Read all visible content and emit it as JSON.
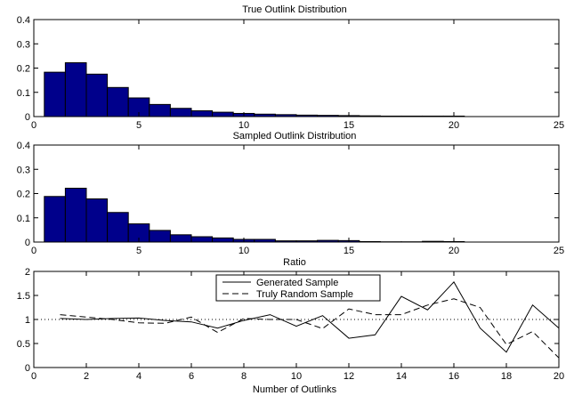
{
  "chart_data": [
    {
      "type": "bar",
      "title": "True Outlink Distribution",
      "xlim": [
        0,
        25
      ],
      "ylim": [
        0,
        0.4
      ],
      "xticks": [
        "0",
        "5",
        "10",
        "15",
        "20",
        "25"
      ],
      "yticks": [
        "0",
        "0.1",
        "0.2",
        "0.3",
        "0.4"
      ],
      "bar_color": "#00008b",
      "x": [
        1,
        2,
        3,
        4,
        5,
        6,
        7,
        8,
        9,
        10,
        11,
        12,
        13,
        14,
        15,
        16,
        17,
        18,
        19,
        20
      ],
      "values": [
        0.183,
        0.222,
        0.175,
        0.12,
        0.077,
        0.05,
        0.034,
        0.024,
        0.018,
        0.013,
        0.01,
        0.008,
        0.006,
        0.005,
        0.004,
        0.003,
        0.002,
        0.002,
        0.002,
        0.002
      ]
    },
    {
      "type": "bar",
      "title": "Sampled Outlink Distribution",
      "xlim": [
        0,
        25
      ],
      "ylim": [
        0,
        0.4
      ],
      "xticks": [
        "0",
        "5",
        "10",
        "15",
        "20",
        "25"
      ],
      "yticks": [
        "0",
        "0.1",
        "0.2",
        "0.3",
        "0.4"
      ],
      "bar_color": "#00008b",
      "x": [
        1,
        2,
        3,
        4,
        5,
        6,
        7,
        8,
        9,
        10,
        11,
        12,
        13,
        14,
        15,
        16,
        17,
        18,
        19,
        20
      ],
      "values": [
        0.188,
        0.222,
        0.178,
        0.122,
        0.075,
        0.048,
        0.03,
        0.022,
        0.017,
        0.011,
        0.011,
        0.005,
        0.005,
        0.007,
        0.006,
        0.002,
        0.001,
        0.001,
        0.003,
        0.002
      ]
    },
    {
      "type": "line",
      "title": "Ratio",
      "xlabel": "Number of Outlinks",
      "xlim": [
        0,
        20
      ],
      "ylim": [
        0,
        2
      ],
      "xticks": [
        "0",
        "2",
        "4",
        "6",
        "8",
        "10",
        "12",
        "14",
        "16",
        "18",
        "20"
      ],
      "yticks": [
        "0",
        "0.5",
        "1",
        "1.5",
        "2"
      ],
      "reference_line": 1,
      "legend_position": "top-center",
      "series": [
        {
          "name": "Generated Sample",
          "style": "solid",
          "x": [
            1,
            2,
            3,
            4,
            5,
            6,
            7,
            8,
            9,
            10,
            11,
            12,
            13,
            14,
            15,
            16,
            17,
            18,
            19,
            20
          ],
          "values": [
            1.02,
            1.0,
            1.02,
            1.03,
            0.98,
            0.95,
            0.82,
            0.98,
            1.1,
            0.86,
            1.08,
            0.61,
            0.68,
            1.48,
            1.2,
            1.78,
            0.82,
            0.32,
            1.3,
            0.82
          ]
        },
        {
          "name": "Truly Random Sample",
          "style": "dashed",
          "x": [
            1,
            2,
            3,
            4,
            5,
            6,
            7,
            8,
            9,
            10,
            11,
            12,
            13,
            14,
            15,
            16,
            17,
            18,
            19,
            20
          ],
          "values": [
            1.1,
            1.05,
            1.0,
            0.93,
            0.92,
            1.05,
            0.73,
            1.02,
            1.0,
            1.0,
            0.81,
            1.22,
            1.1,
            1.1,
            1.3,
            1.43,
            1.25,
            0.48,
            0.75,
            0.2
          ]
        }
      ]
    }
  ]
}
